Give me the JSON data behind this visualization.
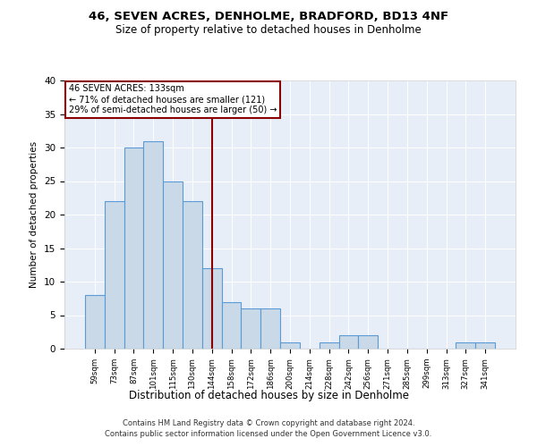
{
  "title1": "46, SEVEN ACRES, DENHOLME, BRADFORD, BD13 4NF",
  "title2": "Size of property relative to detached houses in Denholme",
  "xlabel": "Distribution of detached houses by size in Denholme",
  "ylabel": "Number of detached properties",
  "categories": [
    "59sqm",
    "73sqm",
    "87sqm",
    "101sqm",
    "115sqm",
    "130sqm",
    "144sqm",
    "158sqm",
    "172sqm",
    "186sqm",
    "200sqm",
    "214sqm",
    "228sqm",
    "242sqm",
    "256sqm",
    "271sqm",
    "285sqm",
    "299sqm",
    "313sqm",
    "327sqm",
    "341sqm"
  ],
  "values": [
    8,
    22,
    30,
    31,
    25,
    22,
    12,
    7,
    6,
    6,
    1,
    0,
    1,
    2,
    2,
    0,
    0,
    0,
    0,
    1,
    1
  ],
  "bar_color": "#c9d9e8",
  "bar_edge_color": "#5b9bd5",
  "red_line_x": 6.0,
  "annotation_title": "46 SEVEN ACRES: 133sqm",
  "annotation_line1": "← 71% of detached houses are smaller (121)",
  "annotation_line2": "29% of semi-detached houses are larger (50) →",
  "footer1": "Contains HM Land Registry data © Crown copyright and database right 2024.",
  "footer2": "Contains public sector information licensed under the Open Government Licence v3.0.",
  "ylim": [
    0,
    40
  ],
  "yticks": [
    0,
    5,
    10,
    15,
    20,
    25,
    30,
    35,
    40
  ],
  "background_color": "#e8eef7"
}
